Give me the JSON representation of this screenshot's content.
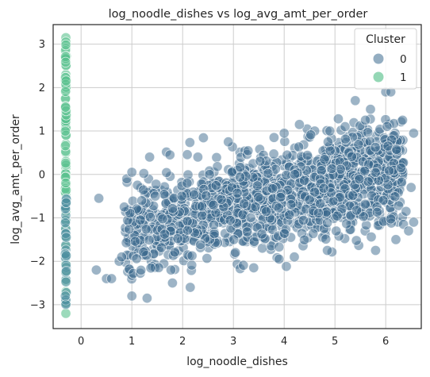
{
  "chart_data": {
    "type": "scatter",
    "title": "log_noodle_dishes vs log_avg_amt_per_order",
    "xlabel": "log_noodle_dishes",
    "ylabel": "log_avg_amt_per_order",
    "xlim": [
      -0.55,
      6.7
    ],
    "ylim": [
      -3.55,
      3.45
    ],
    "xticks": [
      0,
      1,
      2,
      3,
      4,
      5,
      6
    ],
    "yticks": [
      -3,
      -2,
      -1,
      0,
      1,
      2,
      3
    ],
    "grid": true,
    "legend": {
      "title": "Cluster",
      "placement": "top-right"
    },
    "series": [
      {
        "name": "0",
        "color": "#3b6a8e",
        "description_of_cloud": "dense cloud of points with x roughly 0.3 to 6.5 and y roughly -2.9 to 1.9, upward trend",
        "points": [
          [
            0.35,
            -0.55
          ],
          [
            0.3,
            -2.2
          ],
          [
            0.5,
            -2.4
          ],
          [
            0.6,
            -2.4
          ],
          [
            0.75,
            -2.0
          ],
          [
            0.8,
            -1.9
          ],
          [
            0.85,
            -0.75
          ],
          [
            0.9,
            -0.1
          ],
          [
            1.0,
            0.05
          ],
          [
            1.0,
            -2.8
          ],
          [
            1.3,
            -2.85
          ],
          [
            1.35,
            0.4
          ],
          [
            1.75,
            0.45
          ],
          [
            1.8,
            -2.5
          ],
          [
            2.15,
            -2.6
          ],
          [
            2.3,
            0.4
          ],
          [
            2.9,
            0.75
          ],
          [
            3.4,
            -2.15
          ],
          [
            3.8,
            0.85
          ],
          [
            4.0,
            0.95
          ],
          [
            4.3,
            1.15
          ],
          [
            4.9,
            1.0
          ],
          [
            5.2,
            1.1
          ],
          [
            5.4,
            1.7
          ],
          [
            5.7,
            1.5
          ],
          [
            5.8,
            -1.75
          ],
          [
            6.0,
            1.9
          ],
          [
            6.1,
            1.9
          ],
          [
            6.2,
            -1.5
          ],
          [
            6.35,
            -1.15
          ],
          [
            6.45,
            -1.3
          ],
          [
            6.55,
            -1.1
          ],
          [
            6.55,
            0.95
          ],
          [
            6.5,
            -0.3
          ],
          [
            4.85,
            -1.75
          ],
          [
            4.2,
            -1.9
          ],
          [
            3.9,
            -1.95
          ],
          [
            5.6,
            1.25
          ],
          [
            6.3,
            0.15
          ],
          [
            6.4,
            -0.85
          ]
        ]
      },
      {
        "name": "1",
        "color": "#5ac18e",
        "description_of_cloud": "vertical strip at x about -0.3 spanning y roughly -3.2 to 3.1",
        "points": [
          [
            -0.3,
            3.15
          ],
          [
            -0.3,
            3.05
          ],
          [
            -0.3,
            2.9
          ],
          [
            -0.3,
            2.7
          ],
          [
            -0.3,
            2.5
          ],
          [
            -0.3,
            2.3
          ],
          [
            -0.3,
            2.2
          ],
          [
            -0.3,
            1.95
          ],
          [
            -0.3,
            1.75
          ],
          [
            -0.3,
            1.55
          ],
          [
            -0.3,
            1.3
          ],
          [
            -0.3,
            1.1
          ],
          [
            -0.3,
            0.9
          ],
          [
            -0.3,
            0.7
          ],
          [
            -0.3,
            0.5
          ],
          [
            -0.3,
            0.3
          ],
          [
            -0.3,
            0.15
          ],
          [
            -0.3,
            -0.05
          ],
          [
            -0.3,
            -0.25
          ],
          [
            -0.3,
            -0.45
          ],
          [
            -0.3,
            -0.65
          ],
          [
            -0.3,
            -0.85
          ],
          [
            -0.3,
            -1.05
          ],
          [
            -0.3,
            -1.25
          ],
          [
            -0.3,
            -1.45
          ],
          [
            -0.3,
            -1.65
          ],
          [
            -0.3,
            -1.85
          ],
          [
            -0.3,
            -2.05
          ],
          [
            -0.3,
            -2.25
          ],
          [
            -0.3,
            -2.45
          ],
          [
            -0.3,
            -2.7
          ],
          [
            -0.3,
            -2.95
          ],
          [
            -0.3,
            -3.2
          ]
        ]
      }
    ]
  }
}
